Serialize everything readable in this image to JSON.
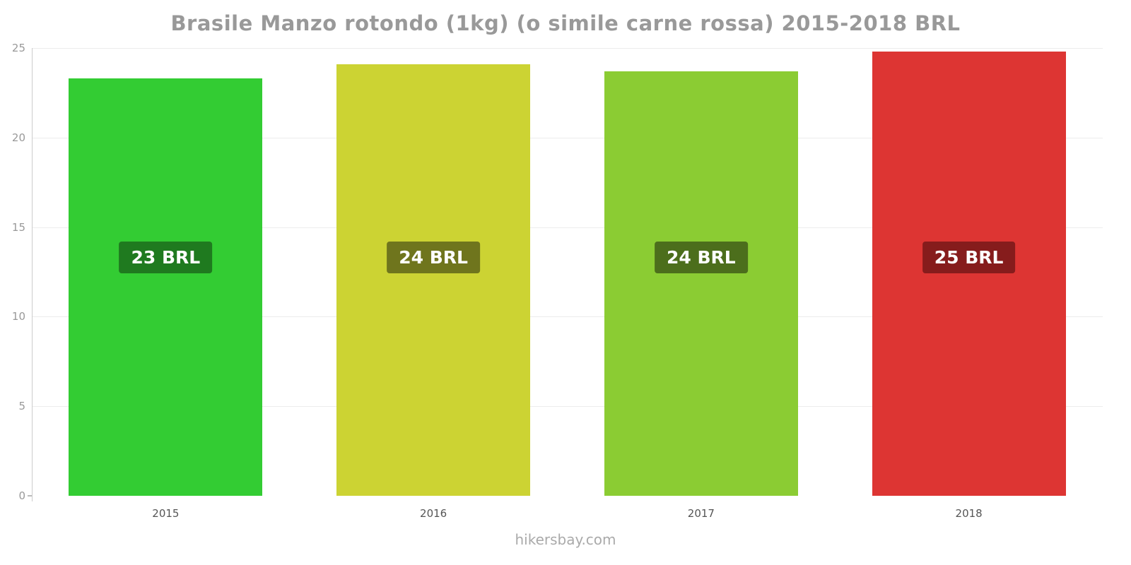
{
  "title": "Brasile Manzo rotondo (1kg) (o simile carne rossa) 2015-2018 BRL",
  "footer": "hikersbay.com",
  "chart_data": {
    "type": "bar",
    "categories": [
      "2015",
      "2016",
      "2017",
      "2018"
    ],
    "values": [
      23.3,
      24.1,
      23.7,
      24.8
    ],
    "bar_labels": [
      "23 BRL",
      "24 BRL",
      "24 BRL",
      "25 BRL"
    ],
    "bar_colors": [
      "#33cc33",
      "#ccd333",
      "#8bcc33",
      "#dd3533"
    ],
    "badge_colors": [
      "#1f7a1f",
      "#6f751d",
      "#4c6e1c",
      "#861c1c"
    ],
    "title": "Brasile Manzo rotondo (1kg) (o simile carne rossa) 2015-2018 BRL",
    "xlabel": "",
    "ylabel": "",
    "ylim": [
      0,
      25
    ],
    "yticks": [
      0,
      5,
      10,
      15,
      20,
      25
    ],
    "grid": true,
    "legend_position": "none"
  }
}
